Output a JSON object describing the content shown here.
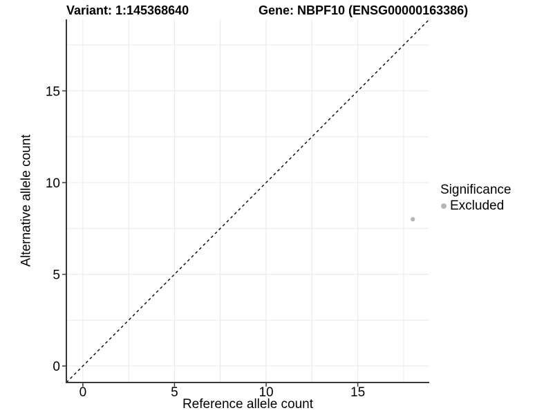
{
  "chart_data": {
    "type": "scatter",
    "title_left": "Variant: 1:145368640",
    "title_right": "Gene: NBPF10 (ENSG00000163386)",
    "xlabel": "Reference allele count",
    "ylabel": "Alternative allele count",
    "xlim": [
      -0.9,
      18.9
    ],
    "ylim": [
      -0.9,
      18.9
    ],
    "x_ticks": [
      0,
      5,
      10,
      15
    ],
    "y_ticks": [
      0,
      5,
      10,
      15
    ],
    "grid_x": [
      0,
      2.5,
      5,
      7.5,
      10,
      12.5,
      15,
      17.5
    ],
    "grid_y": [
      0,
      2.5,
      5,
      7.5,
      10,
      12.5,
      15,
      17.5
    ],
    "grid": "on",
    "identity_line": {
      "style": "dashed",
      "from": [
        -0.9,
        -0.9
      ],
      "to": [
        18.9,
        18.9
      ],
      "color": "#000000"
    },
    "series": [
      {
        "name": "Excluded",
        "color": "#b6b6b6",
        "points": [
          [
            18,
            8
          ]
        ]
      }
    ],
    "legend": {
      "title": "Significance",
      "position": "right",
      "items": [
        {
          "label": "Excluded",
          "color": "#b6b6b6"
        }
      ]
    },
    "colors": {
      "background": "#ffffff",
      "grid": "#e9e9e9",
      "axis": "#383838",
      "text": "#000000"
    }
  }
}
